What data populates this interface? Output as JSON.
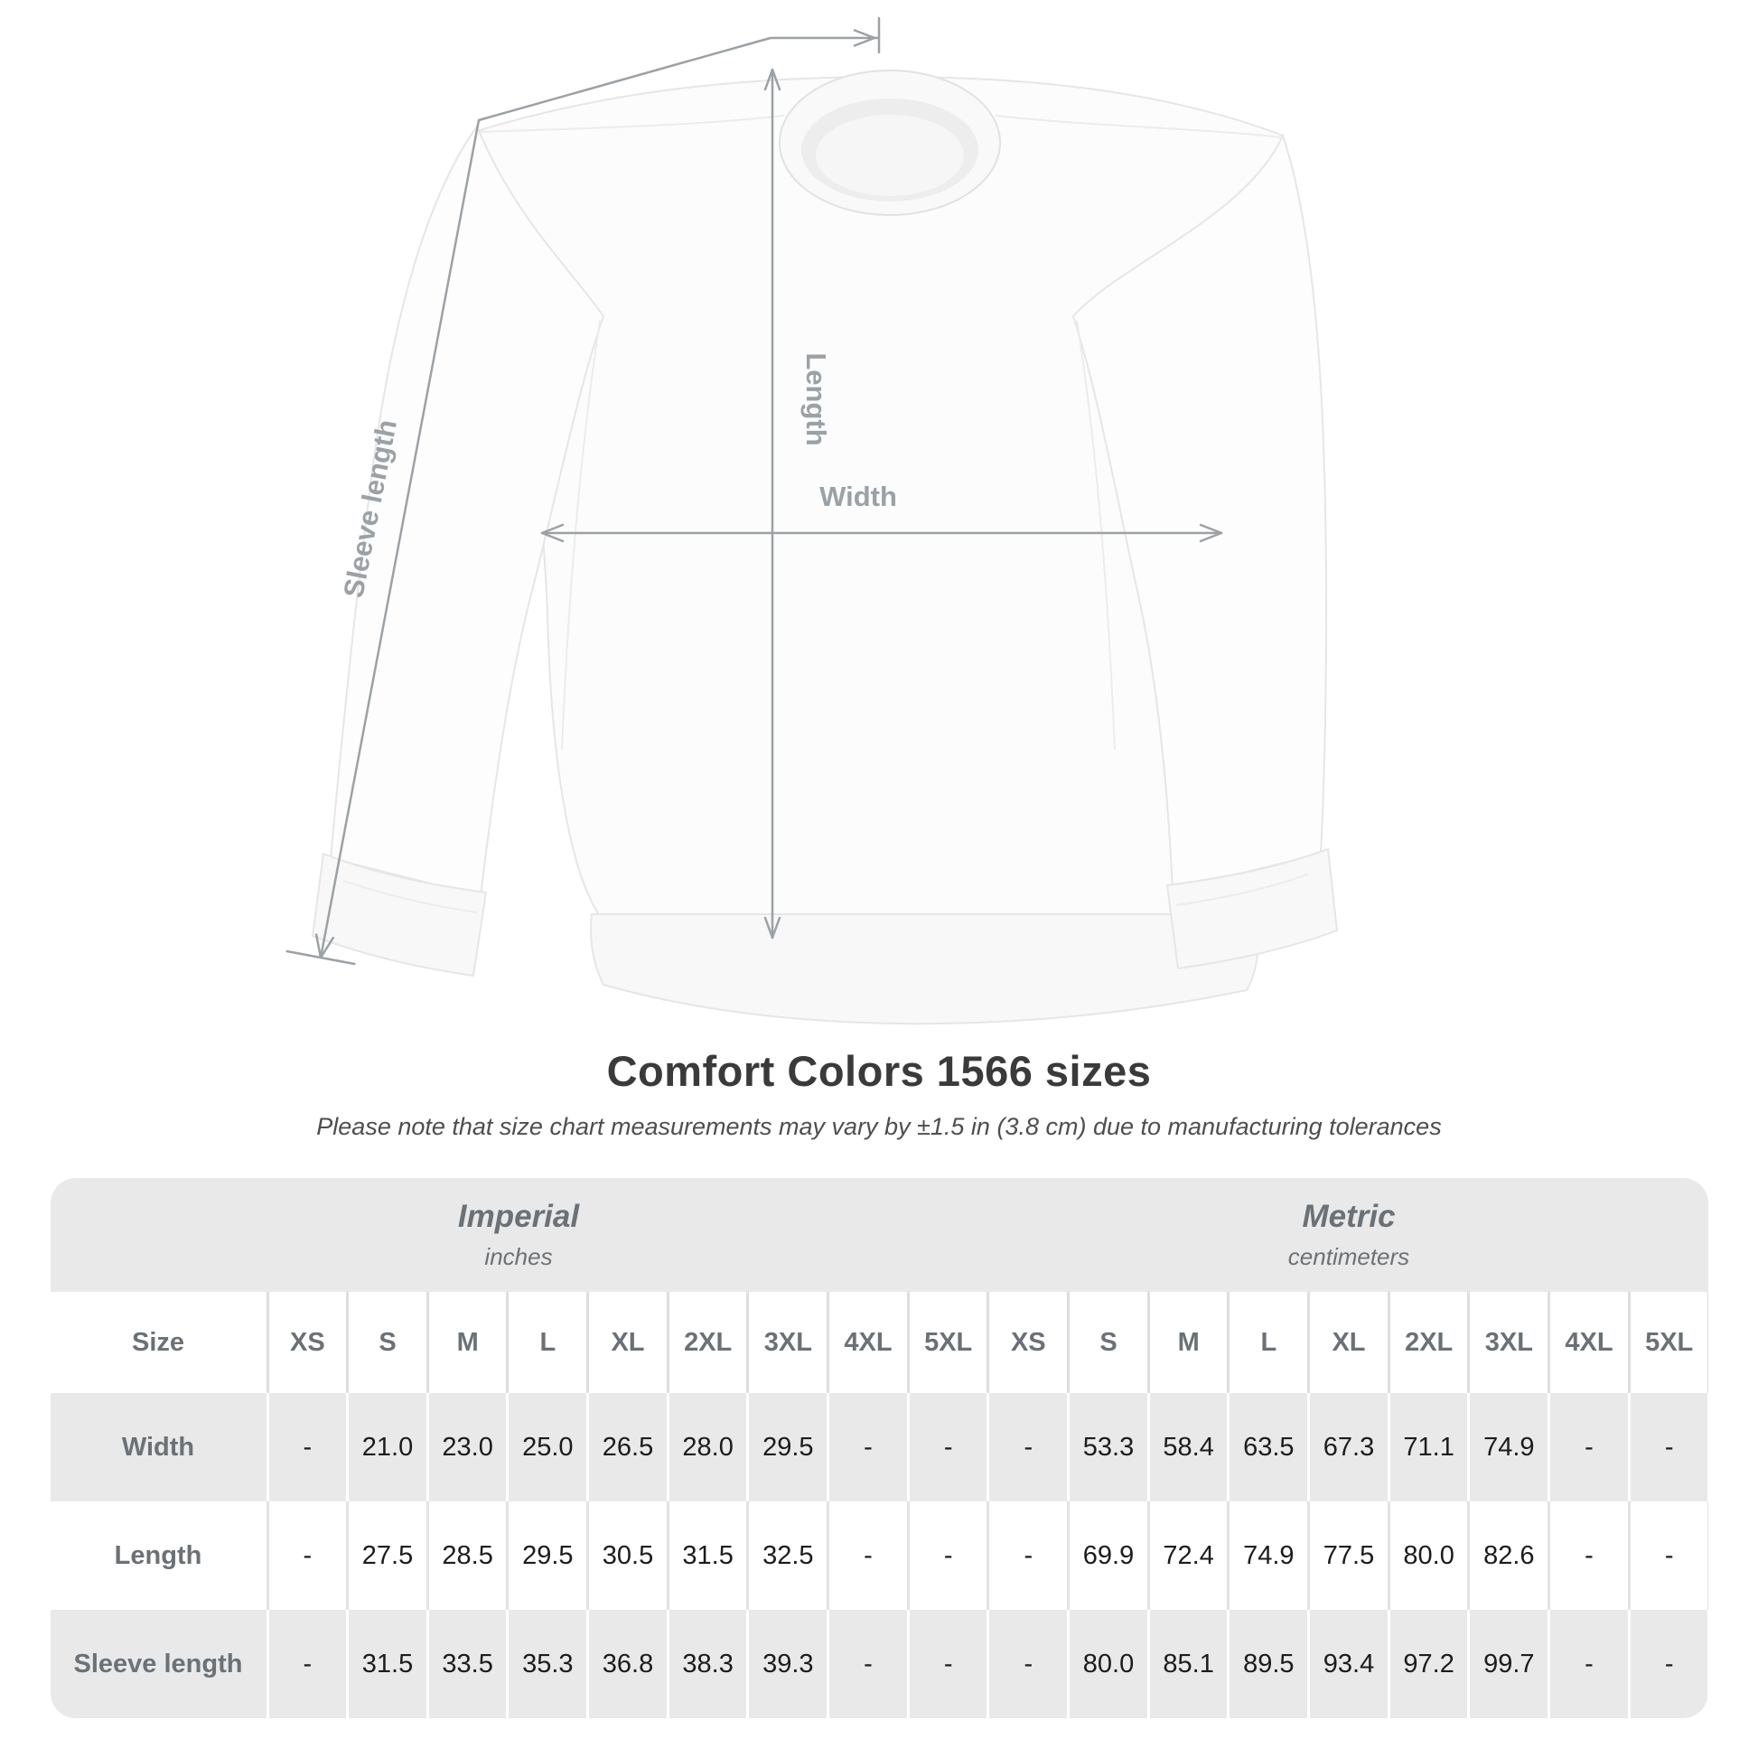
{
  "title": "Comfort Colors 1566 sizes",
  "subtitle": "Please note that size chart measurements may vary by ±1.5 in (3.8 cm) due to manufacturing tolerances",
  "figure": {
    "product": "white crewneck sweatshirt, front view",
    "labels": {
      "length": "Length",
      "width": "Width",
      "sleeve": "Sleeve length"
    }
  },
  "colors": {
    "annotation": "#9ca1a5",
    "band_gray": "#e9e9e9",
    "header_text": "#6b7176",
    "value_text": "#1c1c1c",
    "title_text": "#3a3a3a",
    "garment_outline": "#e6e6e6",
    "background": "#ffffff"
  },
  "table": {
    "size_header": "Size",
    "sections": [
      {
        "name": "Imperial",
        "unit": "inches"
      },
      {
        "name": "Metric",
        "unit": "centimeters"
      }
    ],
    "sizes": [
      "XS",
      "S",
      "M",
      "L",
      "XL",
      "2XL",
      "3XL",
      "4XL",
      "5XL"
    ],
    "rows": [
      {
        "label": "Width",
        "imperial": [
          "-",
          "21.0",
          "23.0",
          "25.0",
          "26.5",
          "28.0",
          "29.5",
          "-",
          "-"
        ],
        "metric": [
          "-",
          "53.3",
          "58.4",
          "63.5",
          "67.3",
          "71.1",
          "74.9",
          "-",
          "-"
        ]
      },
      {
        "label": "Length",
        "imperial": [
          "-",
          "27.5",
          "28.5",
          "29.5",
          "30.5",
          "31.5",
          "32.5",
          "-",
          "-"
        ],
        "metric": [
          "-",
          "69.9",
          "72.4",
          "74.9",
          "77.5",
          "80.0",
          "82.6",
          "-",
          "-"
        ]
      },
      {
        "label": "Sleeve length",
        "imperial": [
          "-",
          "31.5",
          "33.5",
          "35.3",
          "36.8",
          "38.3",
          "39.3",
          "-",
          "-"
        ],
        "metric": [
          "-",
          "80.0",
          "85.1",
          "89.5",
          "93.4",
          "97.2",
          "99.7",
          "-",
          "-"
        ]
      }
    ]
  },
  "chart_data": {
    "type": "table",
    "title": "Comfort Colors 1566 sizes",
    "units": [
      "inches",
      "centimeters"
    ],
    "categories": [
      "XS",
      "S",
      "M",
      "L",
      "XL",
      "2XL",
      "3XL",
      "4XL",
      "5XL"
    ],
    "series": [
      {
        "name": "Width (in)",
        "values": [
          null,
          21.0,
          23.0,
          25.0,
          26.5,
          28.0,
          29.5,
          null,
          null
        ]
      },
      {
        "name": "Length (in)",
        "values": [
          null,
          27.5,
          28.5,
          29.5,
          30.5,
          31.5,
          32.5,
          null,
          null
        ]
      },
      {
        "name": "Sleeve length (in)",
        "values": [
          null,
          31.5,
          33.5,
          35.3,
          36.8,
          38.3,
          39.3,
          null,
          null
        ]
      },
      {
        "name": "Width (cm)",
        "values": [
          null,
          53.3,
          58.4,
          63.5,
          67.3,
          71.1,
          74.9,
          null,
          null
        ]
      },
      {
        "name": "Length (cm)",
        "values": [
          null,
          69.9,
          72.4,
          74.9,
          77.5,
          80.0,
          82.6,
          null,
          null
        ]
      },
      {
        "name": "Sleeve length (cm)",
        "values": [
          null,
          80.0,
          85.1,
          89.5,
          93.4,
          97.2,
          99.7,
          null,
          null
        ]
      }
    ]
  }
}
